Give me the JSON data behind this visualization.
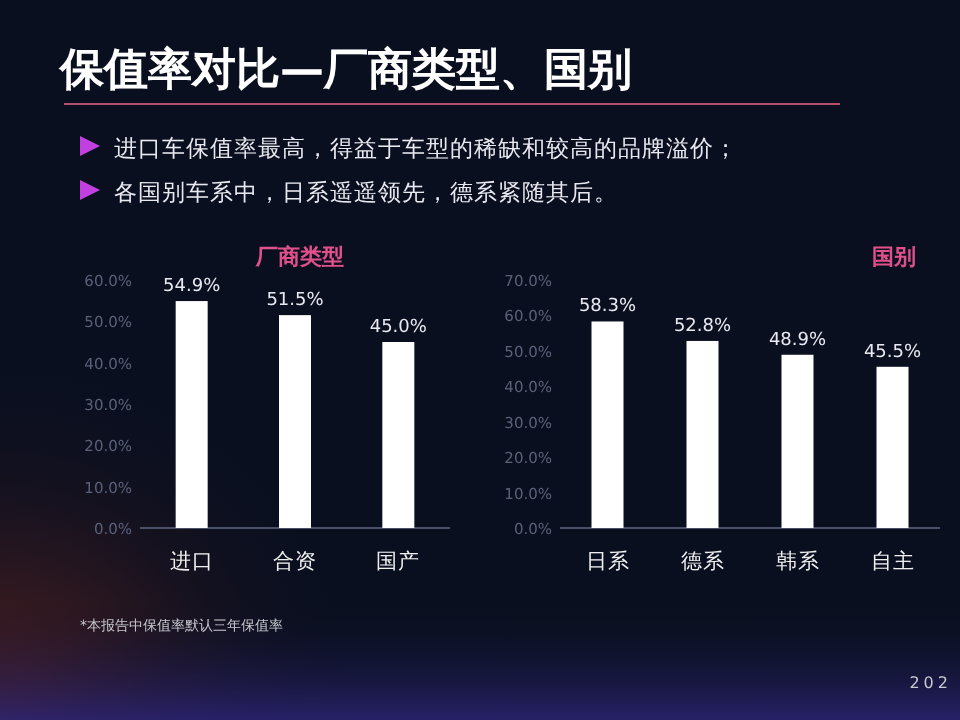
{
  "chart_data": [
    {
      "type": "bar",
      "title": "厂商类型",
      "categories": [
        "进口",
        "合资",
        "国产"
      ],
      "values": [
        54.9,
        51.5,
        45.0
      ],
      "color": "#ffffff",
      "value_labels": [
        "54.9%",
        "51.5%",
        "45.0%"
      ],
      "ylim": [
        0,
        60
      ],
      "yticks": [
        {
          "value": 0,
          "label": "0.0%"
        },
        {
          "value": 10,
          "label": "10.0%"
        },
        {
          "value": 20,
          "label": "20.0%"
        },
        {
          "value": 30,
          "label": "30.0%"
        },
        {
          "value": 40,
          "label": "40.0%"
        },
        {
          "value": 50,
          "label": "50.0%"
        },
        {
          "value": 60,
          "label": "60.0%"
        }
      ],
      "grid": false,
      "annotations": [
        "保值率对比—厂商类型、国别",
        "进口车保值率最高，得益于车型的稀缺和较高的品牌溢价；",
        "各国别车系中，日系遥遥领先，德系紧随其后。",
        "*本报告中保值率默认三年保值率"
      ]
    },
    {
      "type": "bar",
      "title": "国别",
      "categories": [
        "日系",
        "德系",
        "韩系",
        "自主"
      ],
      "values": [
        58.3,
        52.8,
        48.9,
        45.5
      ],
      "color": "#ffffff",
      "value_labels": [
        "58.3%",
        "52.8%",
        "48.9%",
        "45.5%"
      ],
      "ylim": [
        0,
        70
      ],
      "yticks": [
        {
          "value": 0,
          "label": "0.0%"
        },
        {
          "value": 10,
          "label": "10.0%"
        },
        {
          "value": 20,
          "label": "20.0%"
        },
        {
          "value": 30,
          "label": "30.0%"
        },
        {
          "value": 40,
          "label": "40.0%"
        },
        {
          "value": 50,
          "label": "50.0%"
        },
        {
          "value": 60,
          "label": "60.0%"
        },
        {
          "value": 70,
          "label": "70.0%"
        }
      ],
      "grid": false,
      "annotations": [
        "202"
      ]
    }
  ]
}
